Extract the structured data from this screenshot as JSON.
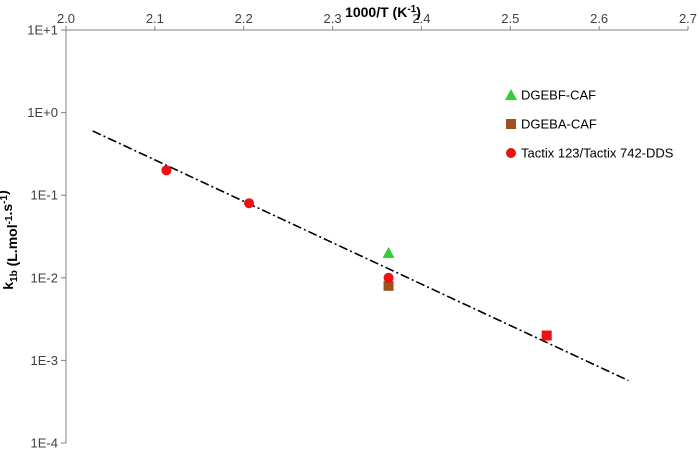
{
  "chart_data": {
    "type": "scatter",
    "x_axis": {
      "position": "top",
      "label_main": "1000/T (K",
      "label_sup": "-1",
      "label_end": ")",
      "range": [
        2.0,
        2.7
      ],
      "ticks": [
        2.0,
        2.1,
        2.2,
        2.3,
        2.4,
        2.5,
        2.6,
        2.7
      ],
      "tick_labels": [
        "2.0",
        "2.1",
        "2.2",
        "2.3",
        "2.4",
        "2.5",
        "2.6",
        "2.7"
      ]
    },
    "y_axis": {
      "scale": "log",
      "range": [
        0.0001,
        10
      ],
      "label_parts": [
        {
          "text": "k",
          "style": "normal"
        },
        {
          "text": "1b",
          "style": "sub"
        },
        {
          "text": " (L.mol",
          "style": "normal"
        },
        {
          "text": "-1",
          "style": "sup"
        },
        {
          "text": ".s",
          "style": "normal"
        },
        {
          "text": "-1",
          "style": "sup"
        },
        {
          "text": ")",
          "style": "normal"
        }
      ],
      "ticks": [
        10,
        1,
        0.1,
        0.01,
        0.001,
        0.0001
      ],
      "tick_labels": [
        "1E+1",
        "1E+0",
        "1E-1",
        "1E-2",
        "1E-3",
        "1E-4"
      ]
    },
    "grid": false,
    "legend_position": "top-right",
    "series": [
      {
        "name": "DGEBF-CAF",
        "marker": "triangle",
        "color": "#33cc33",
        "points": [
          {
            "x": 2.363,
            "y": 0.02
          }
        ]
      },
      {
        "name": "DGEBA-CAF",
        "marker": "square",
        "color": "#a0501e",
        "points": [
          {
            "x": 2.363,
            "y": 0.008
          }
        ]
      },
      {
        "name": "Tactix 123/Tactix 742-DDS",
        "marker": "circle",
        "color": "#ee1111",
        "points": [
          {
            "x": 2.113,
            "y": 0.2
          },
          {
            "x": 2.206,
            "y": 0.08
          },
          {
            "x": 2.363,
            "y": 0.01
          }
        ]
      }
    ],
    "extra_points": [
      {
        "marker": "square",
        "color": "#ee1111",
        "x": 2.541,
        "y": 0.002
      }
    ],
    "trendline": {
      "style": "dash-dot",
      "color": "#000000",
      "x": [
        2.03,
        2.633
      ],
      "y": [
        0.6,
        0.00057
      ]
    }
  }
}
